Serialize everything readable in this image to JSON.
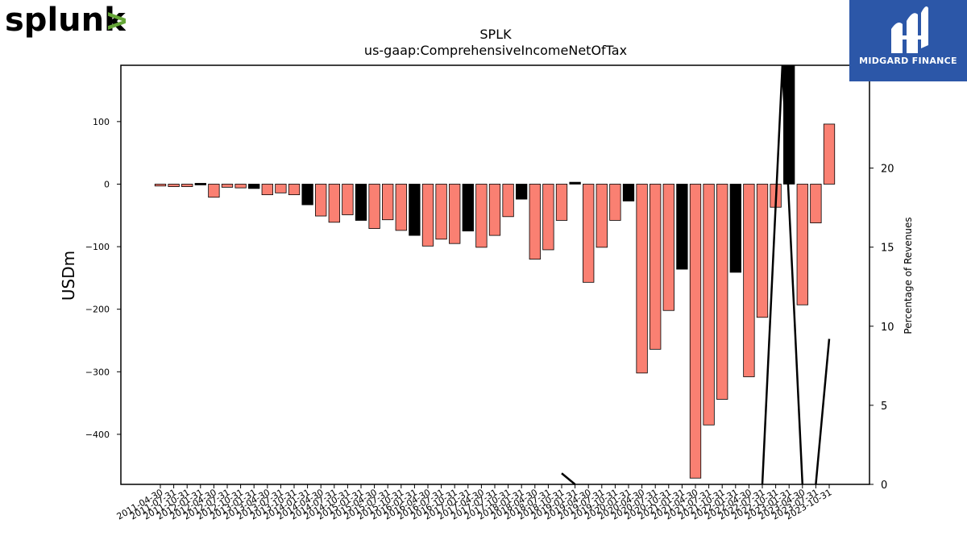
{
  "logos": {
    "left_text": "splunk",
    "left_mark": ">",
    "right_text": "MIDGARD FINANCE",
    "splunk_color": "#000000",
    "splunk_accent": "#65a637",
    "midgard_bg": "#2c57a8"
  },
  "chart_data": {
    "type": "bar",
    "title": "SPLK",
    "subtitle": "us-gaap:ComprehensiveIncomeNetOfTax",
    "ylabel": "USDm",
    "y2label": "Percentage of Revenues",
    "ylim": [
      -480,
      190
    ],
    "y2lim": [
      0,
      26.5
    ],
    "yticks": [
      -400,
      -300,
      -200,
      -100,
      0,
      100
    ],
    "y2ticks": [
      0,
      5,
      10,
      15,
      20
    ],
    "categories": [
      "2011-04-30",
      "2011-07-31",
      "2011-10-31",
      "2012-01-31",
      "2012-04-30",
      "2012-07-31",
      "2012-10-31",
      "2013-01-31",
      "2013-04-30",
      "2013-07-31",
      "2013-10-31",
      "2014-01-31",
      "2014-04-30",
      "2014-07-31",
      "2014-10-31",
      "2015-01-31",
      "2015-04-30",
      "2015-07-31",
      "2015-10-31",
      "2016-01-31",
      "2016-04-30",
      "2016-07-31",
      "2016-10-31",
      "2017-01-31",
      "2017-04-30",
      "2017-07-31",
      "2017-10-31",
      "2018-01-31",
      "2018-04-30",
      "2018-07-31",
      "2018-10-31",
      "2019-01-31",
      "2019-04-30",
      "2019-07-31",
      "2019-10-31",
      "2020-01-31",
      "2020-04-30",
      "2020-07-31",
      "2020-10-31",
      "2021-01-31",
      "2021-04-30",
      "2021-07-31",
      "2021-10-31",
      "2022-01-31",
      "2022-04-30",
      "2022-07-31",
      "2022-10-31",
      "2023-01-31",
      "2023-04-30",
      "2023-07-31",
      "2023-10-31"
    ],
    "values": [
      -3,
      -4,
      -4,
      -2,
      -21,
      -5,
      -6,
      -7,
      -17,
      -14,
      -17,
      -33,
      -51,
      -61,
      -49,
      -58,
      -71,
      -57,
      -74,
      -82,
      -99,
      -88,
      -95,
      -75,
      -101,
      -82,
      -52,
      -24,
      -120,
      -105,
      -58,
      3,
      -157,
      -101,
      -58,
      -27,
      -302,
      -264,
      -202,
      -136,
      -470,
      -385,
      -344,
      -141,
      -308,
      -213,
      -37,
      190,
      -193,
      -62,
      96
    ],
    "highlight": [
      false,
      false,
      false,
      true,
      false,
      false,
      false,
      true,
      false,
      false,
      false,
      true,
      false,
      false,
      false,
      true,
      false,
      false,
      false,
      true,
      false,
      false,
      false,
      true,
      false,
      false,
      false,
      true,
      false,
      false,
      false,
      true,
      false,
      false,
      false,
      true,
      false,
      false,
      false,
      true,
      false,
      false,
      false,
      true,
      false,
      false,
      false,
      true,
      false,
      false,
      false
    ],
    "bar_color": "#fa8072",
    "highlight_color": "#000000",
    "line_segments": [
      {
        "x_start": "2018-10-31",
        "x_end": "2019-01-31",
        "y": [
          0.7,
          0
        ]
      },
      {
        "x_start": "2022-07-31",
        "x_end": "2023-04-30",
        "y": [
          0,
          26.5,
          0
        ]
      },
      {
        "x_start": "2023-07-31",
        "x_end": "2023-10-31",
        "y": [
          0,
          9.2
        ]
      }
    ],
    "line_color": "#000000",
    "grid": false
  }
}
